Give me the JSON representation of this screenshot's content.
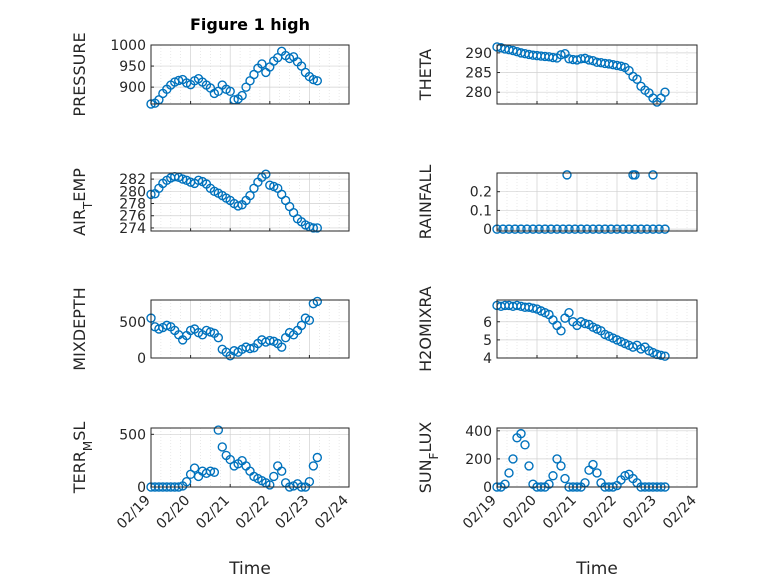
{
  "figure_title": "Figure 1 high",
  "colors": {
    "marker": "#0072BD",
    "axis": "#262626"
  },
  "x_tick_labels": [
    "02/19",
    "02/20",
    "02/21",
    "02/22",
    "02/23",
    "02/24"
  ],
  "x_axis_label": "Time",
  "chart_data": [
    {
      "type": "scatter",
      "ylabel": "PRESSURE",
      "ylim": [
        860,
        1000
      ],
      "yticks": [
        900,
        950,
        1000
      ],
      "xlim": [
        0,
        5
      ],
      "x": [
        0,
        0.1,
        0.2,
        0.3,
        0.4,
        0.5,
        0.6,
        0.7,
        0.8,
        0.9,
        1.0,
        1.1,
        1.2,
        1.3,
        1.4,
        1.5,
        1.6,
        1.7,
        1.8,
        1.9,
        2.0,
        2.1,
        2.2,
        2.3,
        2.4,
        2.5,
        2.6,
        2.7,
        2.8,
        2.9,
        3.0,
        3.1,
        3.2,
        3.3,
        3.4,
        3.5,
        3.6,
        3.7,
        3.8,
        3.9,
        4.0,
        4.1,
        4.2
      ],
      "y": [
        860,
        862,
        870,
        885,
        895,
        905,
        912,
        916,
        918,
        910,
        906,
        915,
        920,
        912,
        905,
        898,
        885,
        890,
        905,
        895,
        890,
        870,
        872,
        880,
        900,
        915,
        930,
        945,
        955,
        935,
        948,
        962,
        970,
        985,
        975,
        968,
        972,
        960,
        950,
        935,
        925,
        918,
        915
      ]
    },
    {
      "type": "scatter",
      "ylabel": "THETA",
      "ylim": [
        277,
        292
      ],
      "yticks": [
        280,
        285,
        290
      ],
      "xlim": [
        0,
        5
      ],
      "x": [
        0,
        0.1,
        0.2,
        0.3,
        0.4,
        0.5,
        0.6,
        0.7,
        0.8,
        0.9,
        1.0,
        1.1,
        1.2,
        1.3,
        1.4,
        1.5,
        1.6,
        1.7,
        1.8,
        1.9,
        2.0,
        2.1,
        2.2,
        2.3,
        2.4,
        2.5,
        2.6,
        2.7,
        2.8,
        2.9,
        3.0,
        3.1,
        3.2,
        3.3,
        3.4,
        3.5,
        3.6,
        3.7,
        3.8,
        3.9,
        4.0,
        4.1,
        4.2
      ],
      "y": [
        291.5,
        291.3,
        291,
        290.8,
        290.6,
        290.3,
        290,
        289.8,
        289.6,
        289.4,
        289.3,
        289.2,
        289.1,
        289,
        288.8,
        288.7,
        289.5,
        289.8,
        288.5,
        288.3,
        288.2,
        288.5,
        288.6,
        288.2,
        288,
        287.6,
        287.5,
        287.3,
        287.2,
        287,
        286.8,
        286.6,
        286.3,
        285.5,
        284,
        283.3,
        281.5,
        280.5,
        279.8,
        278.5,
        277.5,
        278.5,
        280
      ]
    },
    {
      "type": "scatter",
      "ylabel": "AIR_TEMP",
      "ylim": [
        273.5,
        283
      ],
      "yticks": [
        274,
        276,
        278,
        280,
        282
      ],
      "xlim": [
        0,
        5
      ],
      "x": [
        0,
        0.1,
        0.2,
        0.3,
        0.4,
        0.5,
        0.6,
        0.7,
        0.8,
        0.9,
        1.0,
        1.1,
        1.2,
        1.3,
        1.4,
        1.5,
        1.6,
        1.7,
        1.8,
        1.9,
        2.0,
        2.1,
        2.2,
        2.3,
        2.4,
        2.5,
        2.6,
        2.7,
        2.8,
        2.9,
        3.0,
        3.1,
        3.2,
        3.3,
        3.4,
        3.5,
        3.6,
        3.7,
        3.8,
        3.9,
        4.0,
        4.1,
        4.2
      ],
      "y": [
        279.5,
        279.6,
        280.5,
        281.3,
        281.8,
        282.2,
        282.4,
        282.3,
        282,
        281.8,
        281.5,
        281.3,
        281.8,
        281.6,
        281.2,
        280.5,
        280,
        279.7,
        279.3,
        278.9,
        278.5,
        278,
        277.6,
        277.8,
        278.5,
        279.3,
        280.5,
        281.5,
        282.3,
        282.8,
        281,
        280.8,
        280.5,
        279.5,
        278.5,
        277.5,
        276.5,
        275.5,
        275,
        274.5,
        274.2,
        274,
        274
      ]
    },
    {
      "type": "scatter",
      "ylabel": "RAINFALL",
      "ylim": [
        -0.01,
        0.3
      ],
      "yticks": [
        0,
        0.1,
        0.2
      ],
      "xlim": [
        0,
        5
      ],
      "x": [
        0,
        0.15,
        0.3,
        0.45,
        0.6,
        0.75,
        0.9,
        1.05,
        1.2,
        1.35,
        1.5,
        1.65,
        1.8,
        1.95,
        2.1,
        2.25,
        2.4,
        2.55,
        2.7,
        2.85,
        3.0,
        3.15,
        3.3,
        3.45,
        3.6,
        3.75,
        3.9,
        4.05,
        4.2,
        1.75,
        3.4,
        3.45,
        3.9
      ],
      "y": [
        0,
        0,
        0,
        0,
        0,
        0,
        0,
        0,
        0,
        0,
        0,
        0,
        0,
        0,
        0,
        0,
        0,
        0,
        0,
        0,
        0,
        0,
        0,
        0,
        0,
        0,
        0,
        0,
        0,
        0.29,
        0.29,
        0.29,
        0.29
      ]
    },
    {
      "type": "scatter",
      "ylabel": "MIXDEPTH",
      "ylim": [
        0,
        800
      ],
      "yticks": [
        0,
        500
      ],
      "xlim": [
        0,
        5
      ],
      "x": [
        0,
        0.1,
        0.2,
        0.3,
        0.4,
        0.5,
        0.6,
        0.7,
        0.8,
        0.9,
        1.0,
        1.1,
        1.2,
        1.3,
        1.4,
        1.5,
        1.6,
        1.7,
        1.8,
        1.9,
        2.0,
        2.1,
        2.2,
        2.3,
        2.4,
        2.5,
        2.6,
        2.7,
        2.8,
        2.9,
        3.0,
        3.1,
        3.2,
        3.3,
        3.4,
        3.5,
        3.6,
        3.7,
        3.8,
        3.9,
        4.0,
        4.1,
        4.2
      ],
      "y": [
        550,
        430,
        400,
        420,
        450,
        430,
        380,
        320,
        250,
        310,
        380,
        400,
        350,
        320,
        380,
        360,
        340,
        280,
        120,
        80,
        30,
        100,
        80,
        120,
        150,
        130,
        140,
        200,
        250,
        220,
        240,
        230,
        200,
        150,
        280,
        350,
        320,
        380,
        450,
        550,
        520,
        750,
        780
      ]
    },
    {
      "type": "scatter",
      "ylabel": "H2OMIXRA",
      "ylim": [
        4,
        7.2
      ],
      "yticks": [
        4,
        5,
        6
      ],
      "xlim": [
        0,
        5
      ],
      "x": [
        0,
        0.1,
        0.2,
        0.3,
        0.4,
        0.5,
        0.6,
        0.7,
        0.8,
        0.9,
        1.0,
        1.1,
        1.2,
        1.3,
        1.4,
        1.5,
        1.6,
        1.7,
        1.8,
        1.9,
        2.0,
        2.1,
        2.2,
        2.3,
        2.4,
        2.5,
        2.6,
        2.7,
        2.8,
        2.9,
        3.0,
        3.1,
        3.2,
        3.3,
        3.4,
        3.5,
        3.6,
        3.7,
        3.8,
        3.9,
        4.0,
        4.1,
        4.2
      ],
      "y": [
        6.9,
        6.85,
        6.9,
        6.9,
        6.85,
        6.9,
        6.85,
        6.8,
        6.8,
        6.75,
        6.7,
        6.6,
        6.5,
        6.4,
        6.1,
        5.8,
        5.5,
        6.2,
        6.5,
        6.0,
        5.8,
        6.0,
        5.9,
        5.85,
        5.7,
        5.6,
        5.5,
        5.3,
        5.2,
        5.1,
        5.0,
        4.9,
        4.8,
        4.7,
        4.6,
        4.7,
        4.5,
        4.6,
        4.4,
        4.3,
        4.2,
        4.15,
        4.1
      ]
    },
    {
      "type": "scatter",
      "ylabel": "TERR_MSL",
      "ylim": [
        0,
        560
      ],
      "yticks": [
        0,
        500
      ],
      "xlim": [
        0,
        5
      ],
      "x": [
        0,
        0.1,
        0.2,
        0.3,
        0.4,
        0.5,
        0.6,
        0.7,
        0.8,
        0.9,
        1.0,
        1.1,
        1.2,
        1.3,
        1.4,
        1.5,
        1.6,
        1.7,
        1.8,
        1.9,
        2.0,
        2.1,
        2.2,
        2.3,
        2.4,
        2.5,
        2.6,
        2.7,
        2.8,
        2.9,
        3.0,
        3.1,
        3.2,
        3.3,
        3.4,
        3.5,
        3.6,
        3.7,
        3.8,
        3.9,
        4.0,
        4.1,
        4.2
      ],
      "y": [
        0,
        0,
        0,
        0,
        0,
        0,
        0,
        0,
        10,
        50,
        120,
        180,
        100,
        150,
        130,
        150,
        140,
        540,
        380,
        300,
        260,
        200,
        220,
        250,
        200,
        150,
        100,
        80,
        60,
        40,
        20,
        100,
        200,
        150,
        40,
        0,
        10,
        30,
        0,
        0,
        50,
        200,
        280
      ]
    },
    {
      "type": "scatter",
      "ylabel": "SUN_FLUX",
      "ylim": [
        0,
        420
      ],
      "yticks": [
        0,
        200,
        400
      ],
      "xlim": [
        0,
        5
      ],
      "x": [
        0,
        0.1,
        0.2,
        0.3,
        0.4,
        0.5,
        0.6,
        0.7,
        0.8,
        0.9,
        1.0,
        1.1,
        1.2,
        1.3,
        1.4,
        1.5,
        1.6,
        1.7,
        1.8,
        1.9,
        2.0,
        2.1,
        2.2,
        2.3,
        2.4,
        2.5,
        2.6,
        2.7,
        2.8,
        2.9,
        3.0,
        3.1,
        3.2,
        3.3,
        3.4,
        3.5,
        3.6,
        3.7,
        3.8,
        3.9,
        4.0,
        4.1,
        4.2
      ],
      "y": [
        0,
        0,
        20,
        100,
        200,
        350,
        380,
        300,
        150,
        20,
        0,
        0,
        0,
        20,
        80,
        200,
        150,
        60,
        0,
        0,
        0,
        0,
        30,
        120,
        160,
        100,
        30,
        0,
        0,
        0,
        10,
        50,
        80,
        90,
        60,
        30,
        0,
        0,
        0,
        0,
        0,
        0,
        0
      ]
    }
  ]
}
